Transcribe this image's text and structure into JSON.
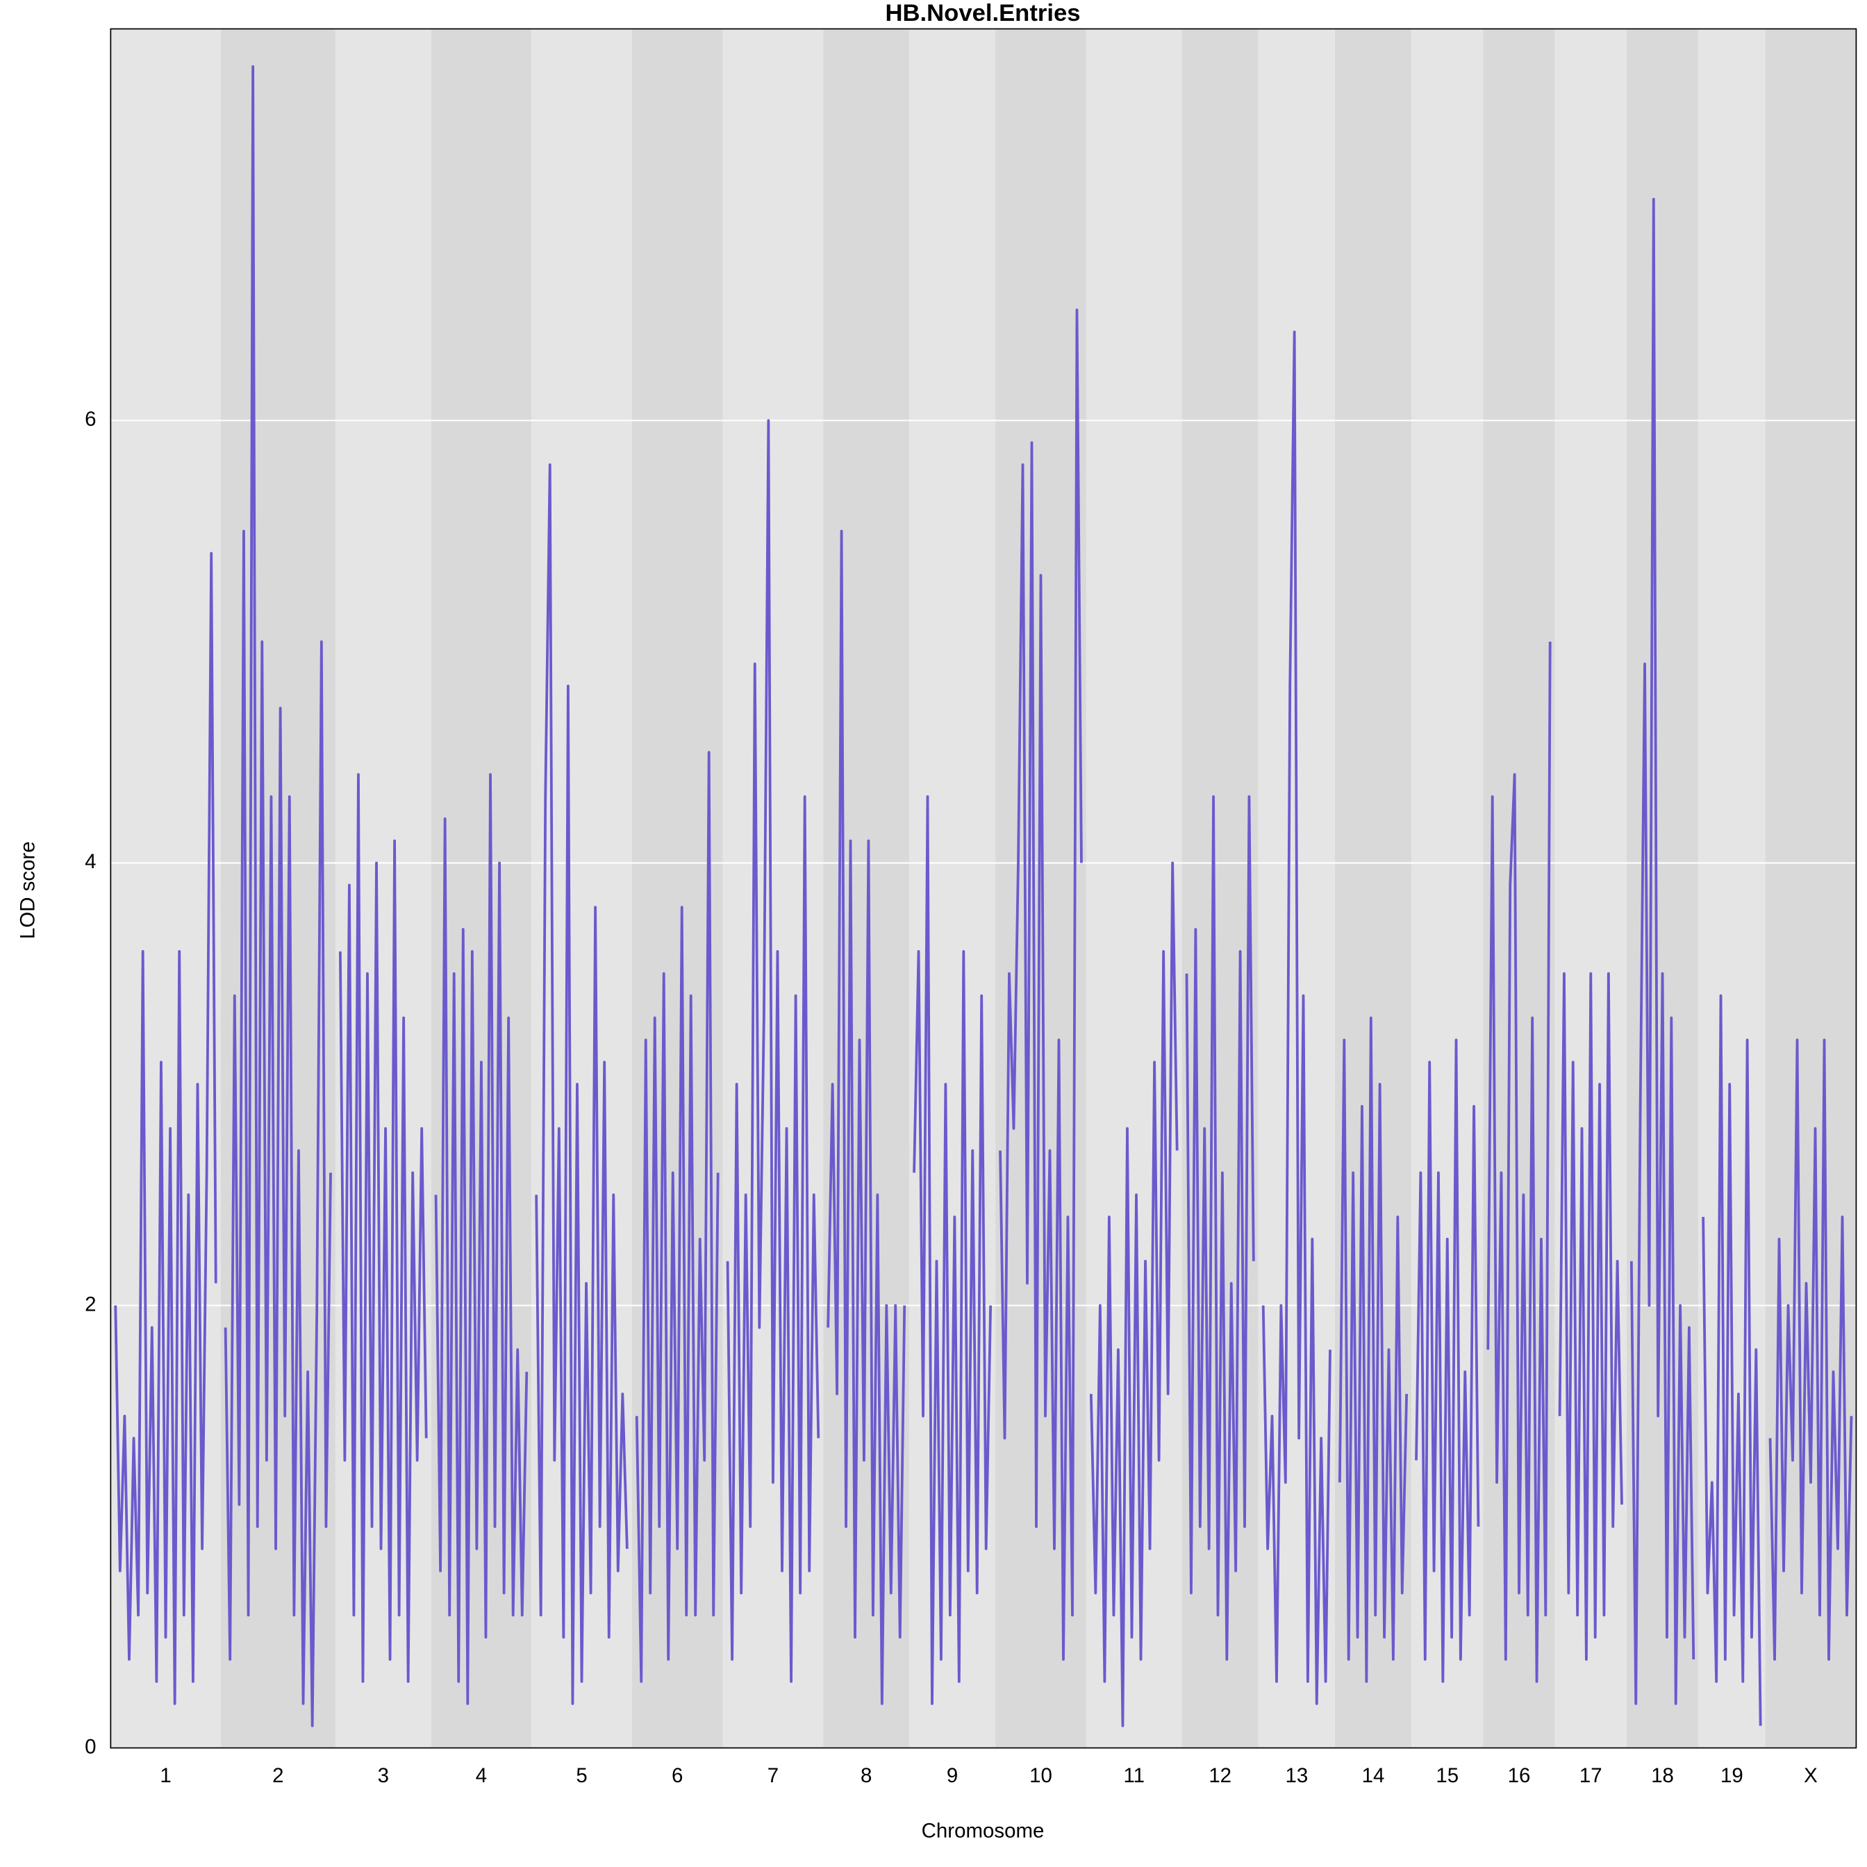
{
  "chart_data": {
    "type": "line",
    "title": "HB.Novel.Entries",
    "x_label": "Chromosome",
    "y_label": "LOD score",
    "color": "#6a5acd",
    "ylim": [
      0,
      7.77
    ],
    "yticks": [
      0,
      2,
      4,
      6
    ],
    "grid": true,
    "band_colors": [
      "#e5e5e5",
      "#d9d9d9"
    ],
    "chromosomes": [
      {
        "label": "1",
        "values": [
          2.0,
          0.8,
          1.5,
          0.4,
          1.4,
          0.6,
          3.6,
          0.7,
          1.9,
          0.3,
          3.1,
          0.5,
          2.8,
          0.2,
          3.6,
          0.6,
          2.5,
          0.3,
          3.0,
          0.9,
          2.6,
          5.4,
          2.1
        ]
      },
      {
        "label": "2",
        "values": [
          1.9,
          0.4,
          3.4,
          1.1,
          5.5,
          0.6,
          7.6,
          1.0,
          5.0,
          1.3,
          4.3,
          0.9,
          4.7,
          1.5,
          4.3,
          0.6,
          2.7,
          0.2,
          1.7,
          0.1,
          2.0,
          5.0,
          1.0,
          2.6
        ]
      },
      {
        "label": "3",
        "values": [
          3.6,
          1.3,
          3.9,
          0.6,
          4.4,
          0.3,
          3.5,
          1.0,
          4.0,
          0.9,
          2.8,
          0.4,
          4.1,
          0.6,
          3.3,
          0.3,
          2.6,
          1.3,
          2.8,
          1.4
        ]
      },
      {
        "label": "4",
        "values": [
          2.5,
          0.8,
          4.2,
          0.6,
          3.5,
          0.3,
          3.7,
          0.2,
          3.6,
          0.9,
          3.1,
          0.5,
          4.4,
          1.0,
          4.0,
          0.7,
          3.3,
          0.6,
          1.8,
          0.6,
          1.7
        ]
      },
      {
        "label": "5",
        "values": [
          2.5,
          0.6,
          4.3,
          5.8,
          1.3,
          2.8,
          0.5,
          4.8,
          0.2,
          3.0,
          0.3,
          2.1,
          0.7,
          3.8,
          1.0,
          3.1,
          0.5,
          2.5,
          0.8,
          1.6,
          0.9
        ]
      },
      {
        "label": "6",
        "values": [
          1.5,
          0.3,
          3.2,
          0.7,
          3.3,
          1.0,
          3.5,
          0.4,
          2.6,
          0.9,
          3.8,
          0.6,
          3.4,
          0.6,
          2.3,
          1.3,
          4.5,
          0.6,
          2.6
        ]
      },
      {
        "label": "7",
        "values": [
          2.2,
          0.4,
          3.0,
          0.7,
          2.5,
          1.0,
          4.9,
          1.9,
          3.3,
          6.0,
          1.2,
          3.6,
          0.8,
          2.8,
          0.3,
          3.4,
          0.7,
          4.3,
          0.8,
          2.5,
          1.4
        ]
      },
      {
        "label": "8",
        "values": [
          1.9,
          3.0,
          1.6,
          5.5,
          1.0,
          4.1,
          0.5,
          3.2,
          1.3,
          4.1,
          0.6,
          2.5,
          0.2,
          2.0,
          0.7,
          2.0,
          0.5,
          2.0
        ]
      },
      {
        "label": "9",
        "values": [
          2.6,
          3.6,
          1.5,
          4.3,
          0.2,
          2.2,
          0.4,
          3.0,
          0.6,
          2.4,
          0.3,
          3.6,
          0.8,
          2.7,
          0.7,
          3.4,
          0.9,
          2.0
        ]
      },
      {
        "label": "10",
        "values": [
          2.7,
          1.4,
          3.5,
          2.8,
          4.0,
          5.8,
          2.1,
          5.9,
          1.0,
          5.3,
          1.5,
          2.7,
          0.9,
          3.2,
          0.4,
          2.4,
          0.6,
          6.5,
          4.0
        ]
      },
      {
        "label": "11",
        "values": [
          1.6,
          0.7,
          2.0,
          0.3,
          2.4,
          0.6,
          1.8,
          0.1,
          2.8,
          0.5,
          2.5,
          0.4,
          2.2,
          0.9,
          3.1,
          1.3,
          3.6,
          1.6,
          4.0,
          2.7
        ]
      },
      {
        "label": "12",
        "values": [
          3.5,
          0.7,
          3.7,
          1.0,
          2.8,
          0.9,
          4.3,
          0.6,
          2.6,
          0.4,
          2.1,
          0.8,
          3.6,
          1.0,
          4.3,
          2.2
        ]
      },
      {
        "label": "13",
        "values": [
          2.0,
          0.9,
          1.5,
          0.3,
          2.0,
          1.2,
          4.8,
          6.4,
          1.4,
          3.4,
          0.3,
          2.3,
          0.2,
          1.4,
          0.3,
          1.8
        ]
      },
      {
        "label": "14",
        "values": [
          1.2,
          3.2,
          0.4,
          2.6,
          0.5,
          2.9,
          0.3,
          3.3,
          0.6,
          3.0,
          0.5,
          1.8,
          0.4,
          2.4,
          0.7,
          1.6
        ]
      },
      {
        "label": "15",
        "values": [
          1.3,
          2.6,
          0.4,
          3.1,
          0.8,
          2.6,
          0.3,
          2.3,
          0.5,
          3.2,
          0.4,
          1.7,
          0.6,
          2.9,
          1.0
        ]
      },
      {
        "label": "16",
        "values": [
          1.8,
          4.3,
          1.2,
          2.6,
          0.4,
          3.9,
          4.4,
          0.7,
          2.5,
          0.6,
          3.3,
          0.3,
          2.3,
          0.6,
          5.0
        ]
      },
      {
        "label": "17",
        "values": [
          1.5,
          3.5,
          0.7,
          3.1,
          0.6,
          2.8,
          0.4,
          3.5,
          0.5,
          3.0,
          0.6,
          3.5,
          1.0,
          2.2,
          1.1
        ]
      },
      {
        "label": "18",
        "values": [
          2.2,
          0.2,
          2.9,
          4.9,
          2.0,
          7.0,
          1.5,
          3.5,
          0.5,
          3.3,
          0.2,
          2.0,
          0.5,
          1.9,
          0.4
        ]
      },
      {
        "label": "19",
        "values": [
          2.4,
          0.7,
          1.2,
          0.3,
          3.4,
          0.4,
          3.0,
          0.6,
          1.6,
          0.3,
          3.2,
          0.5,
          1.8,
          0.1
        ]
      },
      {
        "label": "X",
        "values": [
          1.4,
          0.4,
          2.3,
          0.8,
          2.0,
          1.3,
          3.2,
          0.7,
          2.1,
          1.2,
          2.8,
          0.6,
          3.2,
          0.4,
          1.7,
          0.9,
          2.4,
          0.6,
          1.5
        ]
      }
    ]
  }
}
